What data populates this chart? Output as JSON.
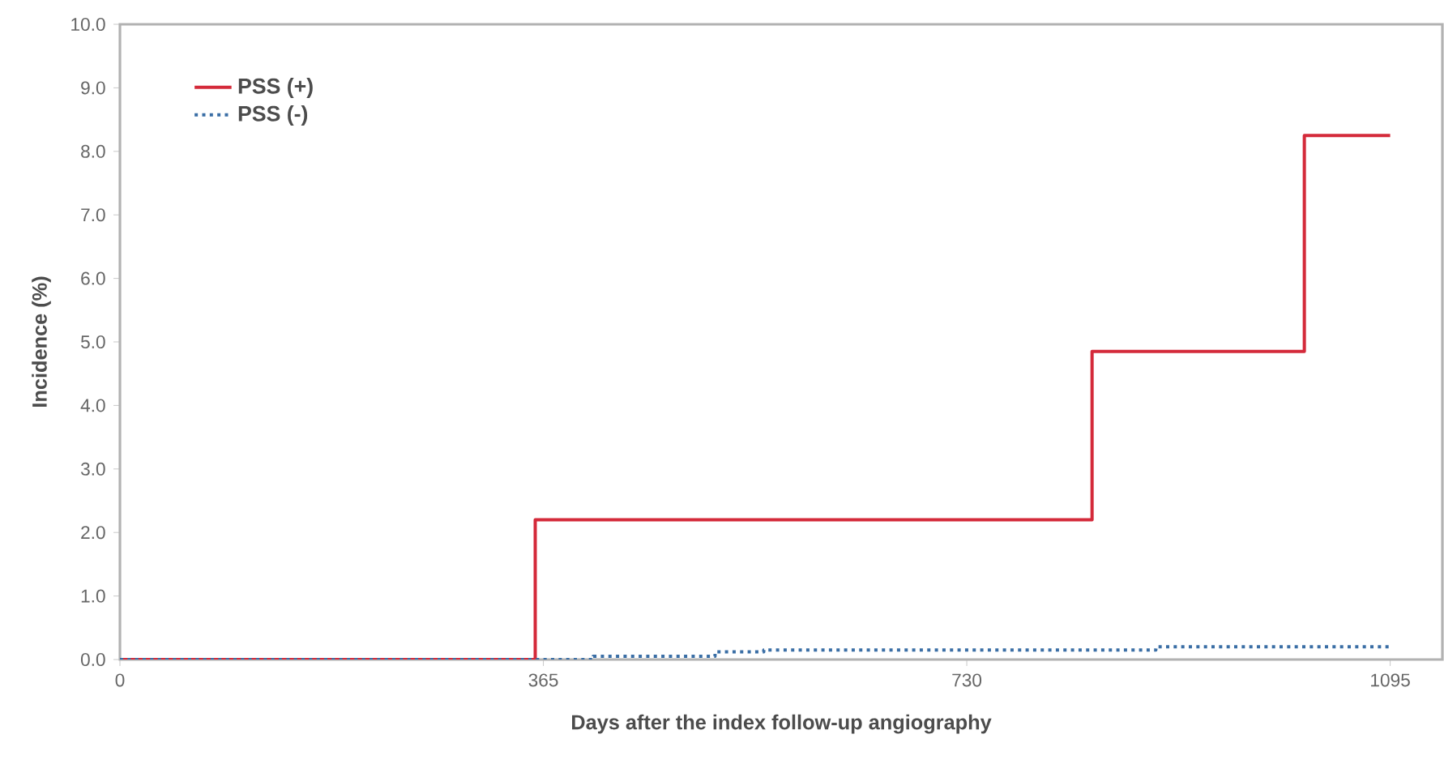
{
  "chart_data": {
    "type": "step",
    "xlabel": "Days after the index follow-up angiography",
    "ylabel": "Incidence (%)",
    "xlim": [
      0,
      1140
    ],
    "xticks": [
      0,
      365,
      730,
      1095
    ],
    "ylim": [
      0,
      10
    ],
    "yticks": [
      {
        "value": 0,
        "label": "0.0"
      },
      {
        "value": 1,
        "label": "1.0"
      },
      {
        "value": 2,
        "label": "2.0"
      },
      {
        "value": 3,
        "label": "3.0"
      },
      {
        "value": 4,
        "label": "4.0"
      },
      {
        "value": 5,
        "label": "5.0"
      },
      {
        "value": 6,
        "label": "6.0"
      },
      {
        "value": 7,
        "label": "7.0"
      },
      {
        "value": 8,
        "label": "8.0"
      },
      {
        "value": 9,
        "label": "9.0"
      },
      {
        "value": 10,
        "label": "10.0"
      }
    ],
    "grid": false,
    "legend": "top left",
    "series": [
      {
        "name": "PSS (+)",
        "color": "#d42a3a",
        "line_style": "solid",
        "x": [
          0,
          358,
          838,
          1021,
          1095
        ],
        "values": [
          0,
          2.2,
          4.85,
          8.25,
          8.25
        ]
      },
      {
        "name": "PSS (-)",
        "color": "#3a6ea5",
        "line_style": "dotted",
        "x": [
          0,
          365,
          408,
          513,
          555,
          893,
          1095
        ],
        "values": [
          0,
          0,
          0.05,
          0.12,
          0.15,
          0.2,
          0.2
        ]
      }
    ]
  }
}
